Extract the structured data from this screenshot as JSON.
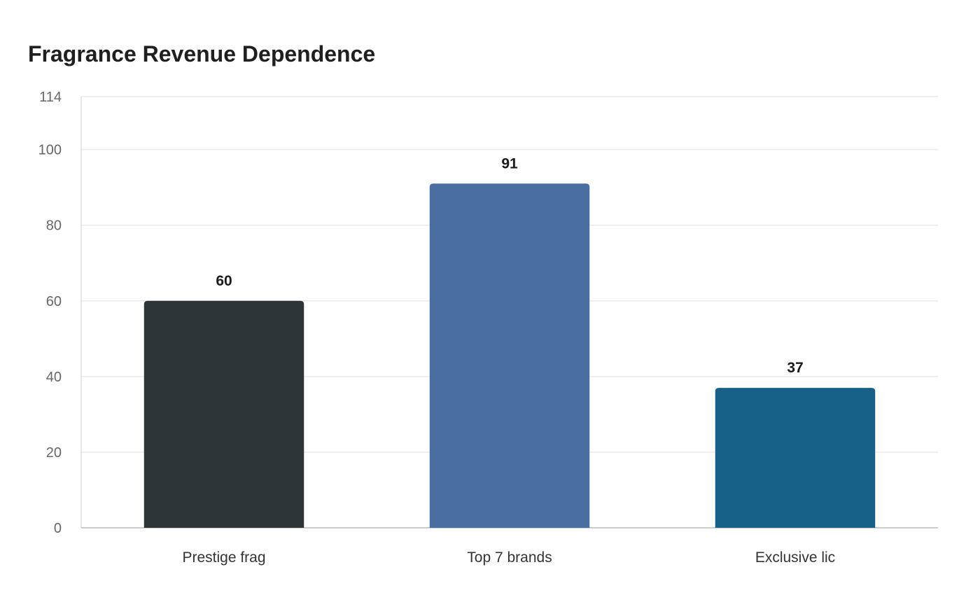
{
  "chart_data": {
    "type": "bar",
    "title": "Fragrance Revenue Dependence",
    "xlabel": "",
    "ylabel": "",
    "categories": [
      "Prestige frag",
      "Top 7 brands",
      "Exclusive lic"
    ],
    "values": [
      60,
      91,
      37
    ],
    "data_labels": [
      "60",
      "91",
      "37"
    ],
    "ylim": [
      0,
      114
    ],
    "yticks": [
      0,
      20,
      40,
      60,
      80,
      100,
      114
    ],
    "grid": true,
    "legend": "none",
    "colors": [
      "#2e3538",
      "#4a6ea2",
      "#176189"
    ],
    "gridline_color": "#ebebeb",
    "axis_color": "#cccccc"
  }
}
